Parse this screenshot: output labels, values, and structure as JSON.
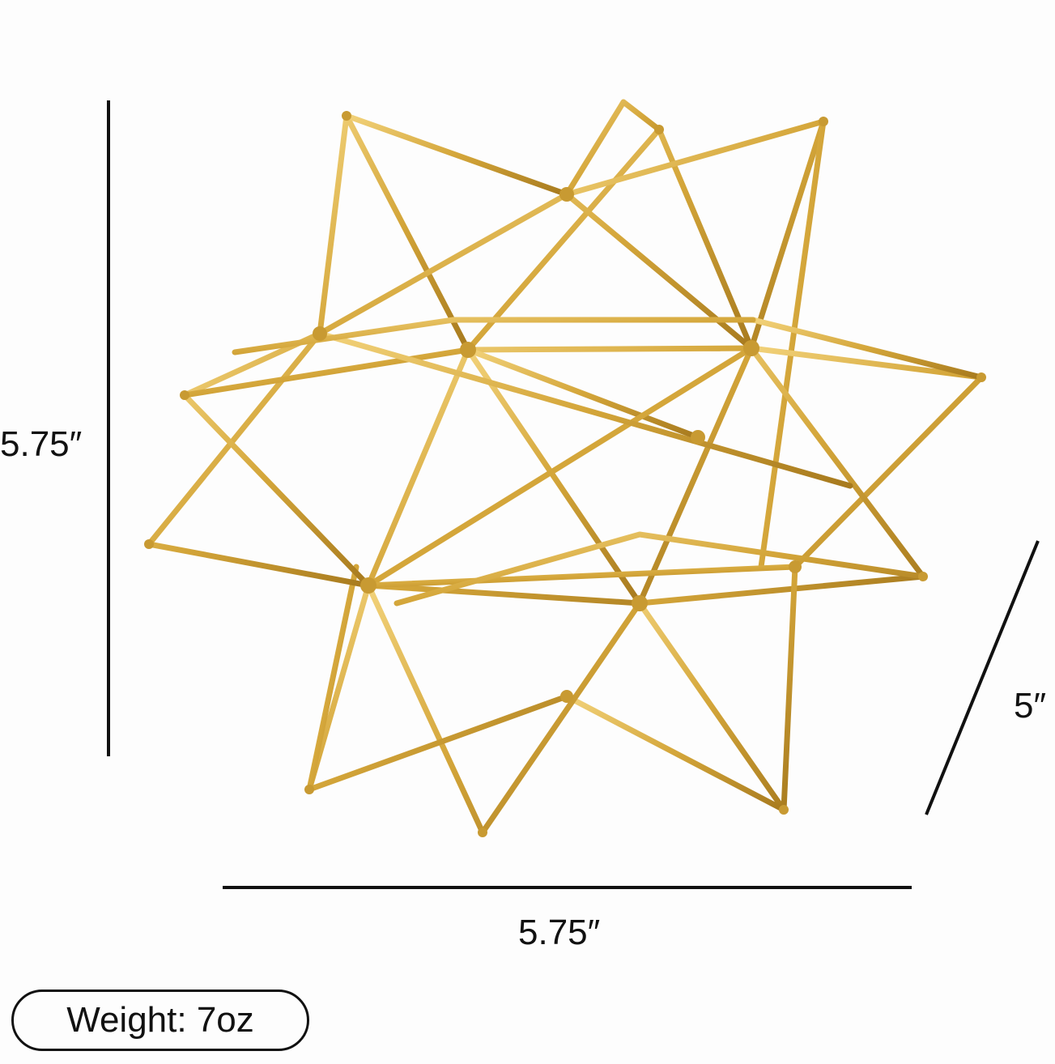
{
  "product": {
    "photo_icon": "gold-wire-star-sculpture",
    "frame_color": "#d4a63a",
    "frame_highlight": "#f2d27a",
    "frame_shadow": "#a77a1e"
  },
  "dimensions": {
    "height_label": "5.75″",
    "width_label": "5.75″",
    "depth_label": "5″"
  },
  "weight": {
    "label": "Weight: 7oz"
  }
}
